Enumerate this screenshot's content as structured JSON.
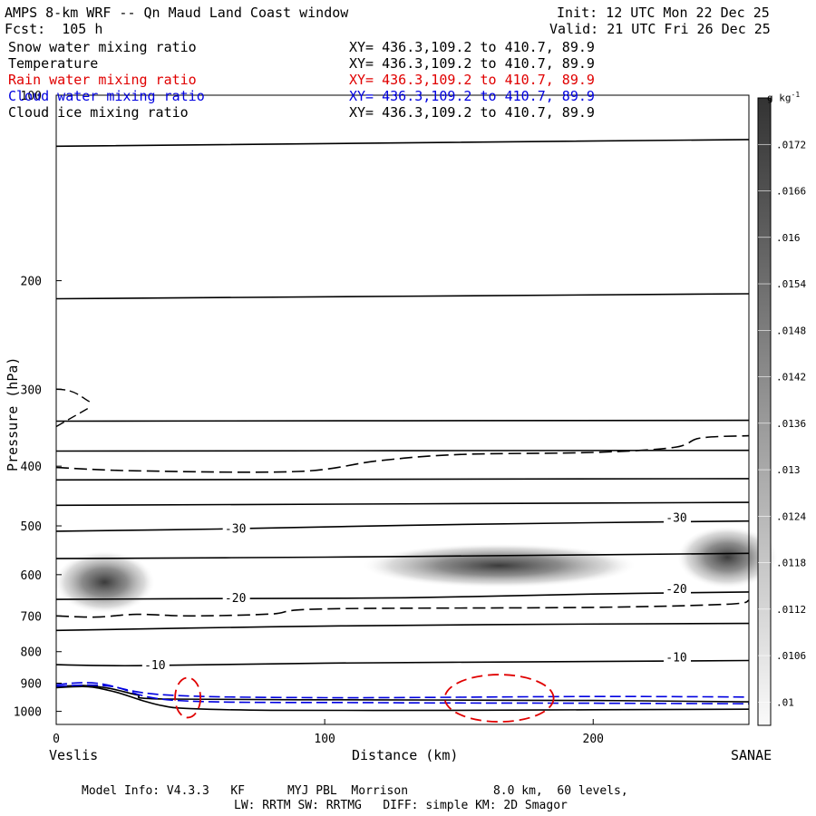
{
  "header": {
    "title": "AMPS 8-km WRF -- Qn Maud Land Coast window",
    "init": "Init: 12 UTC Mon 22 Dec 25",
    "forecast": "Fcst:  105 h",
    "valid": "Valid: 21 UTC Fri 26 Dec 25"
  },
  "legend": [
    {
      "label": "Snow water mixing ratio",
      "xy": "XY= 436.3,109.2 to 410.7, 89.9",
      "color": "#000000"
    },
    {
      "label": "Temperature",
      "xy": "XY= 436.3,109.2 to 410.7, 89.9",
      "color": "#000000"
    },
    {
      "label": "Rain water mixing ratio",
      "xy": "XY= 436.3,109.2 to 410.7, 89.9",
      "color": "#e00000"
    },
    {
      "label": "Cloud water mixing ratio",
      "xy": "XY= 436.3,109.2 to 410.7, 89.9",
      "color": "#0000e0"
    },
    {
      "label": "Cloud ice mixing ratio",
      "xy": "XY= 436.3,109.2 to 410.7, 89.9",
      "color": "#000000"
    }
  ],
  "axes": {
    "ylabel": "Pressure (hPa)",
    "xlabel": "Distance (km)",
    "left_endpoint": "Veslis",
    "right_endpoint": "SANAE"
  },
  "colorbar": {
    "unit": "g kg",
    "unit_exp": "-1",
    "ticks": [
      ".0172",
      ".0166",
      ".016",
      ".0154",
      ".0148",
      ".0142",
      ".0136",
      ".013",
      ".0124",
      ".0118",
      ".0112",
      ".0106",
      ".01"
    ]
  },
  "footer": {
    "line1": "Model Info: V4.3.3   KF      MYJ PBL  Morrison            8.0 km,  60 levels,",
    "line2": "LW: RRTM SW: RRTMG   DIFF: simple KM: 2D Smagor"
  },
  "chart_data": {
    "type": "contour",
    "x": {
      "range": [
        0,
        258
      ],
      "ticks": [
        0,
        100,
        200
      ],
      "label": "Distance (km)"
    },
    "y": {
      "range": [
        1050,
        100
      ],
      "ticks": [
        100,
        200,
        300,
        400,
        500,
        600,
        700,
        800,
        900,
        1000
      ],
      "label": "Pressure (hPa)",
      "scale": "log"
    },
    "isotherms": [
      {
        "label": "",
        "points": [
          [
            0,
            121
          ],
          [
            258,
            118
          ]
        ]
      },
      {
        "label": "",
        "points": [
          [
            0,
            214
          ],
          [
            258,
            210
          ]
        ]
      },
      {
        "label": "",
        "points": [
          [
            0,
            338
          ],
          [
            258,
            337
          ]
        ]
      },
      {
        "label": "",
        "points": [
          [
            0,
            378
          ],
          [
            258,
            377
          ]
        ]
      },
      {
        "label": "",
        "points": [
          [
            0,
            421
          ],
          [
            258,
            419
          ]
        ]
      },
      {
        "label": "",
        "points": [
          [
            0,
            463
          ],
          [
            258,
            458
          ]
        ]
      },
      {
        "label": "-30",
        "points": [
          [
            0,
            510
          ],
          [
            60,
            506
          ],
          [
            130,
            499
          ],
          [
            200,
            494
          ],
          [
            258,
            491
          ]
        ]
      },
      {
        "label": "",
        "points": [
          [
            0,
            565
          ],
          [
            100,
            562
          ],
          [
            200,
            557
          ],
          [
            258,
            554
          ]
        ]
      },
      {
        "label": "-20",
        "points": [
          [
            0,
            658
          ],
          [
            60,
            656
          ],
          [
            130,
            654
          ],
          [
            200,
            645
          ],
          [
            258,
            640
          ]
        ]
      },
      {
        "label": "",
        "points": [
          [
            0,
            739
          ],
          [
            80,
            729
          ],
          [
            160,
            723
          ],
          [
            258,
            720
          ]
        ]
      },
      {
        "label": "-10",
        "points": [
          [
            0,
            840
          ],
          [
            30,
            843
          ],
          [
            100,
            835
          ],
          [
            200,
            830
          ],
          [
            258,
            827
          ]
        ]
      },
      {
        "label": "",
        "points": [
          [
            0,
            912
          ],
          [
            10,
            908
          ],
          [
            20,
            918
          ],
          [
            30,
            940
          ],
          [
            40,
            955
          ],
          [
            120,
            958
          ],
          [
            200,
            960
          ],
          [
            258,
            965
          ]
        ]
      },
      {
        "label": "",
        "points": [
          [
            0,
            915
          ],
          [
            12,
            912
          ],
          [
            22,
            930
          ],
          [
            32,
            960
          ],
          [
            40,
            980
          ],
          [
            50,
            990
          ],
          [
            80,
            996
          ],
          [
            150,
            996
          ],
          [
            200,
            994
          ],
          [
            258,
            992
          ]
        ]
      }
    ],
    "ice_contours": [
      {
        "style": "dashed",
        "points": [
          [
            0,
            402
          ],
          [
            30,
            407
          ],
          [
            90,
            408
          ],
          [
            120,
            392
          ],
          [
            150,
            383
          ],
          [
            200,
            380
          ],
          [
            230,
            373
          ],
          [
            240,
            360
          ],
          [
            258,
            357
          ]
        ]
      },
      {
        "style": "dashed",
        "points": [
          [
            0,
            700
          ],
          [
            15,
            703
          ],
          [
            30,
            696
          ],
          [
            50,
            700
          ],
          [
            80,
            695
          ],
          [
            100,
            682
          ],
          [
            200,
            678
          ],
          [
            250,
            670
          ],
          [
            258,
            660
          ]
        ]
      }
    ],
    "snow_shading": [
      {
        "center": [
          18,
          617
        ],
        "max": 0.0164
      },
      {
        "center": [
          165,
          580
        ],
        "max": 0.0158
      },
      {
        "center": [
          250,
          562
        ],
        "max": 0.0164
      }
    ],
    "rain_contours": [
      {
        "color": "#e00000",
        "center": [
          49,
          950
        ]
      },
      {
        "color": "#e00000",
        "center": [
          165,
          952
        ]
      }
    ],
    "cloud_water_contours": [
      {
        "color": "#0000e0",
        "points": [
          [
            0,
            905
          ],
          [
            15,
            900
          ],
          [
            40,
            940
          ],
          [
            100,
            950
          ],
          [
            200,
            946
          ],
          [
            258,
            948
          ]
        ]
      },
      {
        "color": "#0000e0",
        "points": [
          [
            0,
            910
          ],
          [
            20,
            910
          ],
          [
            45,
            960
          ],
          [
            120,
            968
          ],
          [
            200,
            970
          ],
          [
            258,
            972
          ]
        ]
      }
    ],
    "colorbar_range": [
      0.0097,
      0.0178
    ]
  }
}
